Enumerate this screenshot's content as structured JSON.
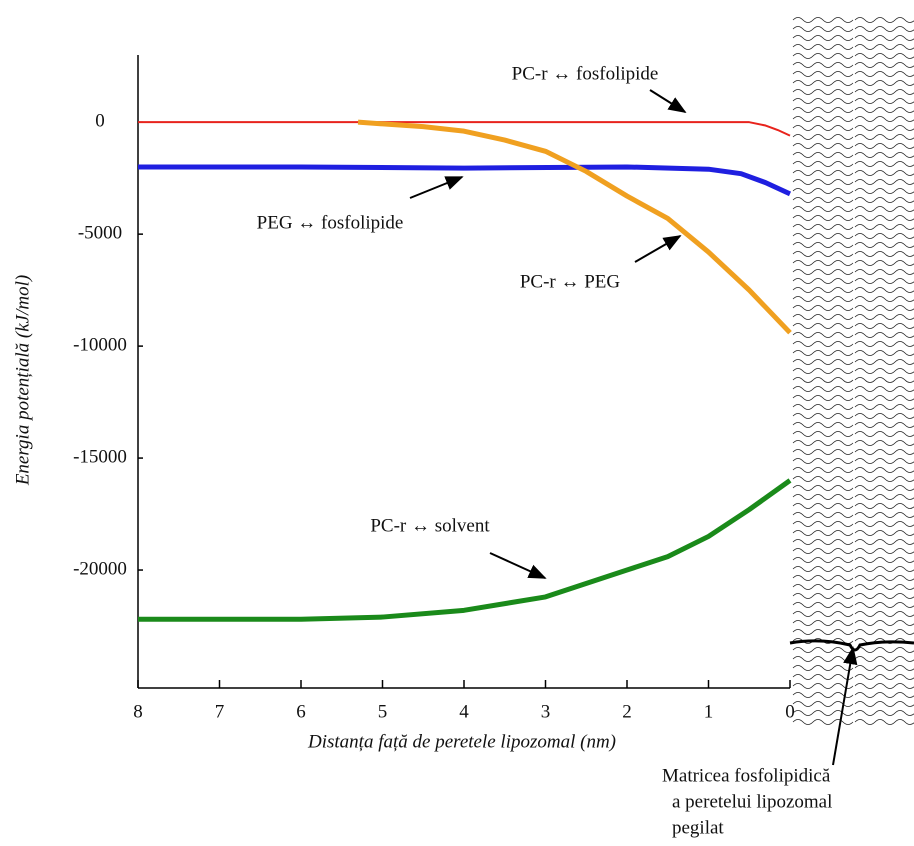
{
  "chart_data": {
    "type": "line",
    "xlabel": "Distanța față de peretele lipozomal (nm)",
    "ylabel": "Energia potențială (kJ/mol)",
    "xlim": [
      8,
      0
    ],
    "xticks": [
      8,
      7,
      6,
      5,
      4,
      3,
      2,
      1,
      0
    ],
    "ylim": [
      -25000,
      3000
    ],
    "yticks": [
      0,
      -5000,
      -10000,
      -15000,
      -20000
    ],
    "series": [
      {
        "name": "PC-r ↔ fosfolipide",
        "color": "#e8231c",
        "x": [
          8,
          0.5,
          0.3,
          0.15,
          0
        ],
        "values": [
          0,
          0,
          -150,
          -350,
          -600
        ]
      },
      {
        "name": "PEG ↔ fosfolipide",
        "color": "#1f1fe0",
        "x": [
          8,
          6,
          4,
          2,
          1,
          0.6,
          0.3,
          0
        ],
        "values": [
          -2000,
          -2000,
          -2050,
          -2000,
          -2100,
          -2300,
          -2700,
          -3200
        ]
      },
      {
        "name": "PC-r ↔ PEG",
        "color": "#f0a020",
        "x": [
          5.3,
          4.5,
          4,
          3.5,
          3,
          2.5,
          2,
          1.5,
          1,
          0.5,
          0
        ],
        "values": [
          0,
          -200,
          -400,
          -800,
          -1300,
          -2200,
          -3300,
          -4300,
          -5800,
          -7500,
          -9400
        ]
      },
      {
        "name": "PC-r ↔ solvent",
        "color": "#1a8a1a",
        "x": [
          8,
          6,
          5,
          4,
          3,
          2,
          1.5,
          1,
          0.5,
          0
        ],
        "values": [
          -22200,
          -22200,
          -22100,
          -21800,
          -21200,
          -20000,
          -19400,
          -18500,
          -17300,
          -16000
        ]
      }
    ],
    "caption": [
      "Matricea fosfolipidică",
      "a peretelui lipozomal",
      "pegilat"
    ]
  }
}
